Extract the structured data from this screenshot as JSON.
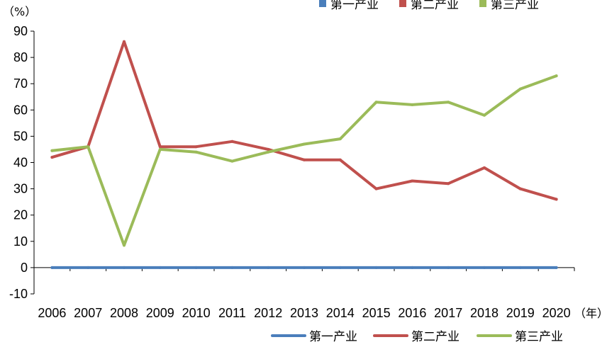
{
  "chart_data": {
    "type": "line",
    "y_unit_label": "（%）",
    "x_unit_label": "（年）",
    "ylim": [
      -10,
      90
    ],
    "y_ticks": [
      -10,
      0,
      10,
      20,
      30,
      40,
      50,
      60,
      70,
      80,
      90
    ],
    "x": [
      "2006",
      "2007",
      "2008",
      "2009",
      "2010",
      "2011",
      "2012",
      "2013",
      "2014",
      "2015",
      "2016",
      "2017",
      "2018",
      "2019",
      "2020"
    ],
    "grid": false,
    "legend_top": [
      "第一产业",
      "第二产业",
      "第三产业"
    ],
    "legend_bottom": [
      "第一产业",
      "第二产业",
      "第三产业"
    ],
    "series": [
      {
        "name": "第一产业",
        "color": "#4a7ebb",
        "values": [
          0,
          0,
          0,
          0,
          0,
          0,
          0,
          0,
          0,
          0,
          0,
          0,
          0,
          0,
          0
        ]
      },
      {
        "name": "第二产业",
        "color": "#c0504d",
        "values": [
          42,
          46,
          86,
          46,
          46,
          48,
          45,
          41,
          41,
          30,
          33,
          32,
          38,
          30,
          26
        ]
      },
      {
        "name": "第三产业",
        "color": "#9bbb59",
        "values": [
          44.5,
          46,
          8.5,
          45,
          44,
          40.5,
          44,
          47,
          49,
          63,
          62,
          63,
          58,
          68,
          73
        ]
      }
    ]
  }
}
